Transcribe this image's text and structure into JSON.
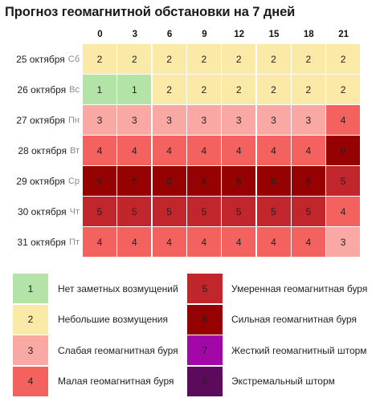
{
  "title": "Прогноз геомагнитной обстановки на 7 дней",
  "chart_data": {
    "type": "heatmap",
    "title": "Прогноз геомагнитной обстановки на 7 дней",
    "x": [
      "0",
      "3",
      "6",
      "9",
      "12",
      "15",
      "18",
      "21"
    ],
    "rows": [
      {
        "date": "25 октября",
        "weekday": "Сб",
        "values": [
          2,
          2,
          2,
          2,
          2,
          2,
          2,
          2
        ]
      },
      {
        "date": "26 октября",
        "weekday": "Вс",
        "values": [
          1,
          1,
          2,
          2,
          2,
          2,
          2,
          2
        ]
      },
      {
        "date": "27 октября",
        "weekday": "Пн",
        "values": [
          3,
          3,
          3,
          3,
          3,
          3,
          3,
          4
        ]
      },
      {
        "date": "28 октября",
        "weekday": "Вт",
        "values": [
          4,
          4,
          4,
          4,
          4,
          4,
          4,
          6
        ]
      },
      {
        "date": "29 октября",
        "weekday": "Ср",
        "values": [
          6,
          6,
          6,
          6,
          6,
          6,
          6,
          5
        ]
      },
      {
        "date": "30 октября",
        "weekday": "Чт",
        "values": [
          5,
          5,
          5,
          5,
          5,
          5,
          5,
          4
        ]
      },
      {
        "date": "31 октября",
        "weekday": "Пт",
        "values": [
          4,
          4,
          4,
          4,
          4,
          4,
          4,
          3
        ]
      }
    ],
    "legend": [
      {
        "level": "1",
        "label": "Нет заметных возмущений",
        "color": "#b3e3a6"
      },
      {
        "level": "2",
        "label": "Небольшие возмущения",
        "color": "#fbe9a7"
      },
      {
        "level": "3",
        "label": "Слабая геомагнитная буря",
        "color": "#f9a8a3"
      },
      {
        "level": "4",
        "label": "Малая геомагнитная буря",
        "color": "#f4625f"
      },
      {
        "level": "5",
        "label": "Умеренная геомагнитная буря",
        "color": "#c0262b"
      },
      {
        "level": "6",
        "label": "Сильная геомагнитная буря",
        "color": "#960101"
      },
      {
        "level": "7",
        "label": "Жесткий геомагнитный шторм",
        "color": "#a207a8"
      },
      {
        "level": "8",
        "label": "Экстремальный шторм",
        "color": "#5d0a5d"
      }
    ]
  }
}
